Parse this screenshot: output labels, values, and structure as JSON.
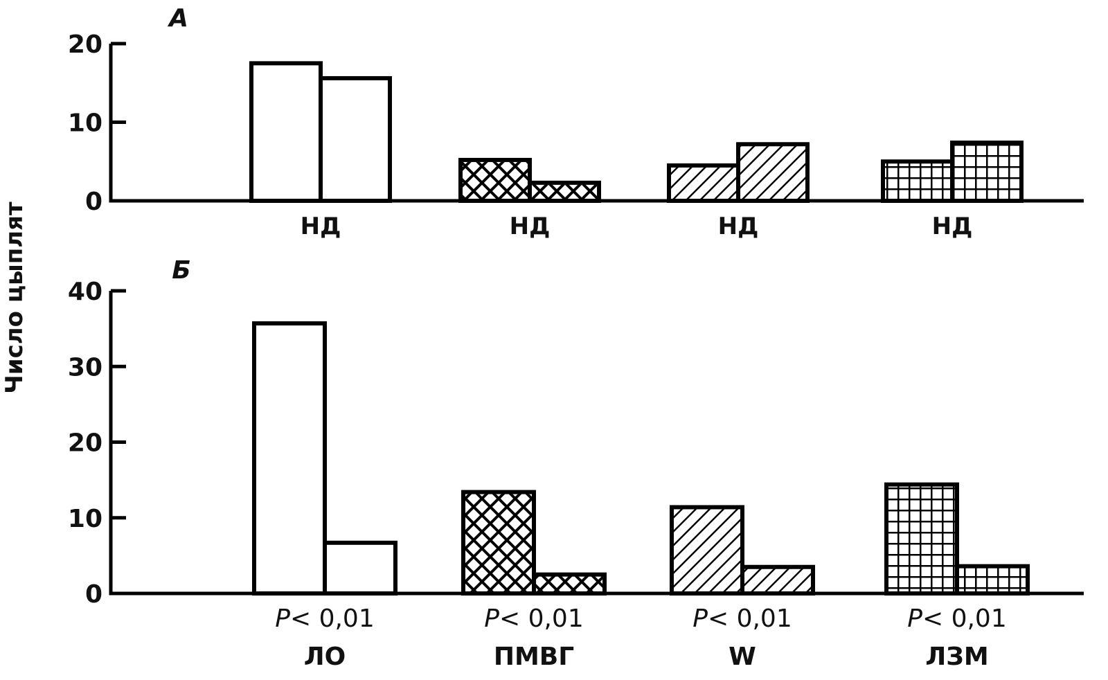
{
  "ylabel": "Число цыплят",
  "chart_data": [
    {
      "type": "bar",
      "panel": "А",
      "ylabel": "Число цыплят",
      "ylim": [
        0,
        20
      ],
      "yticks": [
        0,
        10,
        20
      ],
      "categories": [
        "",
        "",
        "",
        ""
      ],
      "annotations": [
        "НД",
        "НД",
        "НД",
        "НД"
      ],
      "groups": [
        {
          "values": [
            17.5,
            15.6
          ],
          "pattern": "none"
        },
        {
          "values": [
            5.2,
            2.3
          ],
          "pattern": "crosshatch"
        },
        {
          "values": [
            4.5,
            7.2
          ],
          "pattern": "diagonal"
        },
        {
          "values": [
            5.0,
            7.4
          ],
          "pattern": "grid"
        }
      ],
      "grid": false
    },
    {
      "type": "bar",
      "panel": "Б",
      "ylabel": "Число цыплят",
      "ylim": [
        0,
        40
      ],
      "yticks": [
        0,
        10,
        20,
        30,
        40
      ],
      "categories": [
        "ЛО",
        "ПМВГ",
        "W",
        "ЛЗМ"
      ],
      "annotations": [
        "P < 0,01",
        "P < 0,01",
        "P < 0,01",
        "P < 0,01"
      ],
      "groups": [
        {
          "values": [
            35.7,
            6.7
          ],
          "pattern": "none"
        },
        {
          "values": [
            13.4,
            2.5
          ],
          "pattern": "crosshatch"
        },
        {
          "values": [
            11.4,
            3.5
          ],
          "pattern": "diagonal"
        },
        {
          "values": [
            14.4,
            3.6
          ],
          "pattern": "grid"
        }
      ],
      "grid": false
    }
  ]
}
